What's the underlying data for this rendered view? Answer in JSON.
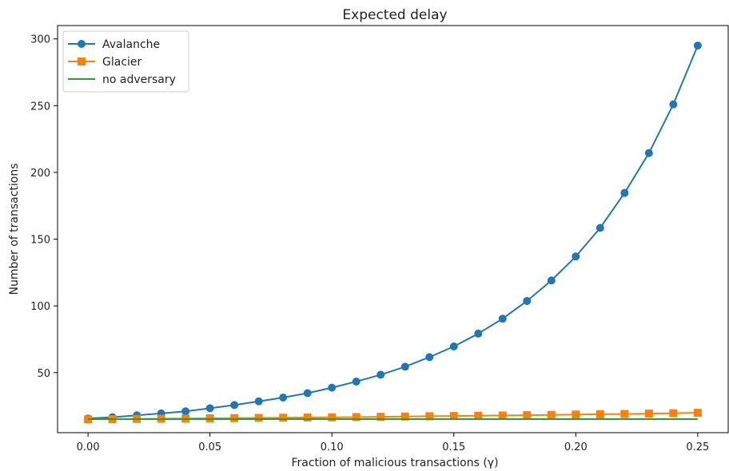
{
  "chart_data": {
    "type": "line",
    "title": "Expected delay",
    "xlabel": "Fraction of malicious transactions (γ)",
    "ylabel": "Number of transactions",
    "xlim": [
      -0.0125,
      0.2625
    ],
    "ylim": [
      5.0,
      310.0
    ],
    "xticks": [
      0.0,
      0.05,
      0.1,
      0.15,
      0.2,
      0.25
    ],
    "xtick_labels": [
      "0.00",
      "0.05",
      "0.10",
      "0.15",
      "0.20",
      "0.25"
    ],
    "yticks": [
      50,
      100,
      150,
      200,
      250,
      300
    ],
    "ytick_labels": [
      "50",
      "100",
      "150",
      "200",
      "250",
      "300"
    ],
    "grid": false,
    "legend_position": "top-left",
    "x": [
      0.0,
      0.01,
      0.02,
      0.03,
      0.04,
      0.05,
      0.06,
      0.07,
      0.08,
      0.09,
      0.1,
      0.11,
      0.12,
      0.13,
      0.14,
      0.15,
      0.16,
      0.17,
      0.18,
      0.19,
      0.2,
      0.21,
      0.22,
      0.23,
      0.24,
      0.25
    ],
    "series": [
      {
        "name": "Avalanche",
        "color": "#1f77b4",
        "marker": "circle",
        "values": [
          15.6,
          16.6,
          18.0,
          19.4,
          21.0,
          23.3,
          25.7,
          28.5,
          31.3,
          34.6,
          38.7,
          43.3,
          48.4,
          54.4,
          61.6,
          69.6,
          79.2,
          90.4,
          103.7,
          119.0,
          137.0,
          158.4,
          184.6,
          214.5,
          251.0,
          295.0
        ]
      },
      {
        "name": "Glacier",
        "color": "#ff7f0e",
        "marker": "square",
        "values": [
          15.0,
          15.1,
          15.3,
          15.5,
          15.6,
          15.8,
          15.9,
          16.1,
          16.2,
          16.4,
          16.5,
          16.7,
          16.9,
          17.1,
          17.3,
          17.5,
          17.7,
          17.9,
          18.1,
          18.3,
          18.6,
          18.8,
          19.0,
          19.3,
          19.6,
          19.9
        ]
      },
      {
        "name": "no adversary",
        "color": "#2ca02c",
        "marker": "none",
        "values": [
          15.2,
          15.2,
          15.2,
          15.2,
          15.2,
          15.2,
          15.2,
          15.2,
          15.2,
          15.2,
          15.2,
          15.2,
          15.2,
          15.2,
          15.2,
          15.2,
          15.2,
          15.2,
          15.2,
          15.2,
          15.2,
          15.2,
          15.2,
          15.2,
          15.2,
          15.2
        ]
      }
    ]
  }
}
